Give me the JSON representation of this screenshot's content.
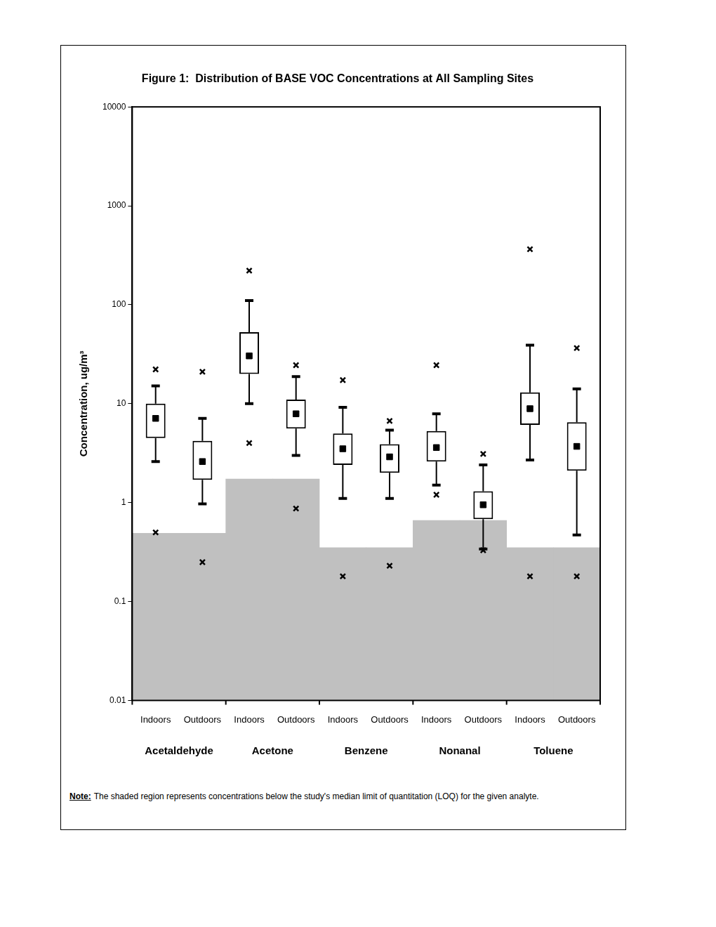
{
  "chart_data": {
    "type": "box",
    "title": "Figure 1:  Distribution of BASE VOC Concentrations at All Sampling Sites",
    "y_label": "Concentration, ug/m³",
    "note_label": "Note:",
    "note": "The shaded region represents concentrations below the study's median limit of quantitation (LOQ) for the given analyte.",
    "categories": [
      "Indoors",
      "Outdoors",
      "Indoors",
      "Outdoors",
      "Indoors",
      "Outdoors",
      "Indoors",
      "Outdoors",
      "Indoors",
      "Outdoors"
    ],
    "groups": [
      "Acetaldehyde",
      "Acetone",
      "Benzene",
      "Nonanal",
      "Toluene"
    ],
    "boxes": {
      "min": [
        0.5,
        0.25,
        4.0,
        0.87,
        0.18,
        0.23,
        1.2,
        0.33,
        0.18,
        0.18
      ],
      "whisker_low": [
        2.6,
        0.97,
        10,
        3.0,
        1.1,
        1.1,
        1.5,
        0.34,
        2.7,
        0.47
      ],
      "q1": [
        4.5,
        1.7,
        20,
        5.6,
        2.4,
        2.0,
        2.6,
        0.68,
        6.1,
        2.1
      ],
      "median": [
        7.1,
        2.6,
        30.4,
        7.9,
        3.5,
        2.9,
        3.6,
        0.95,
        8.9,
        3.7
      ],
      "q3": [
        10,
        4.2,
        52.7,
        11,
        5.0,
        3.9,
        5.3,
        1.3,
        13,
        6.5
      ],
      "whisker_high": [
        15.1,
        7.1,
        110,
        18.8,
        9.2,
        5.4,
        7.9,
        2.4,
        39,
        14.1
      ],
      "max": [
        22.2,
        21,
        221,
        24.5,
        17.3,
        6.7,
        24.5,
        3.1,
        364,
        36.5
      ]
    },
    "loq": [
      0.49,
      0.49,
      1.73,
      1.73,
      0.35,
      0.35,
      0.66,
      0.66,
      0.35,
      0.35
    ],
    "log": "y",
    "ylim": [
      0.01,
      10000
    ],
    "yticks": [
      0.01,
      0.1,
      1,
      10,
      100,
      1000,
      10000
    ],
    "grid": false,
    "color": "#000000"
  }
}
